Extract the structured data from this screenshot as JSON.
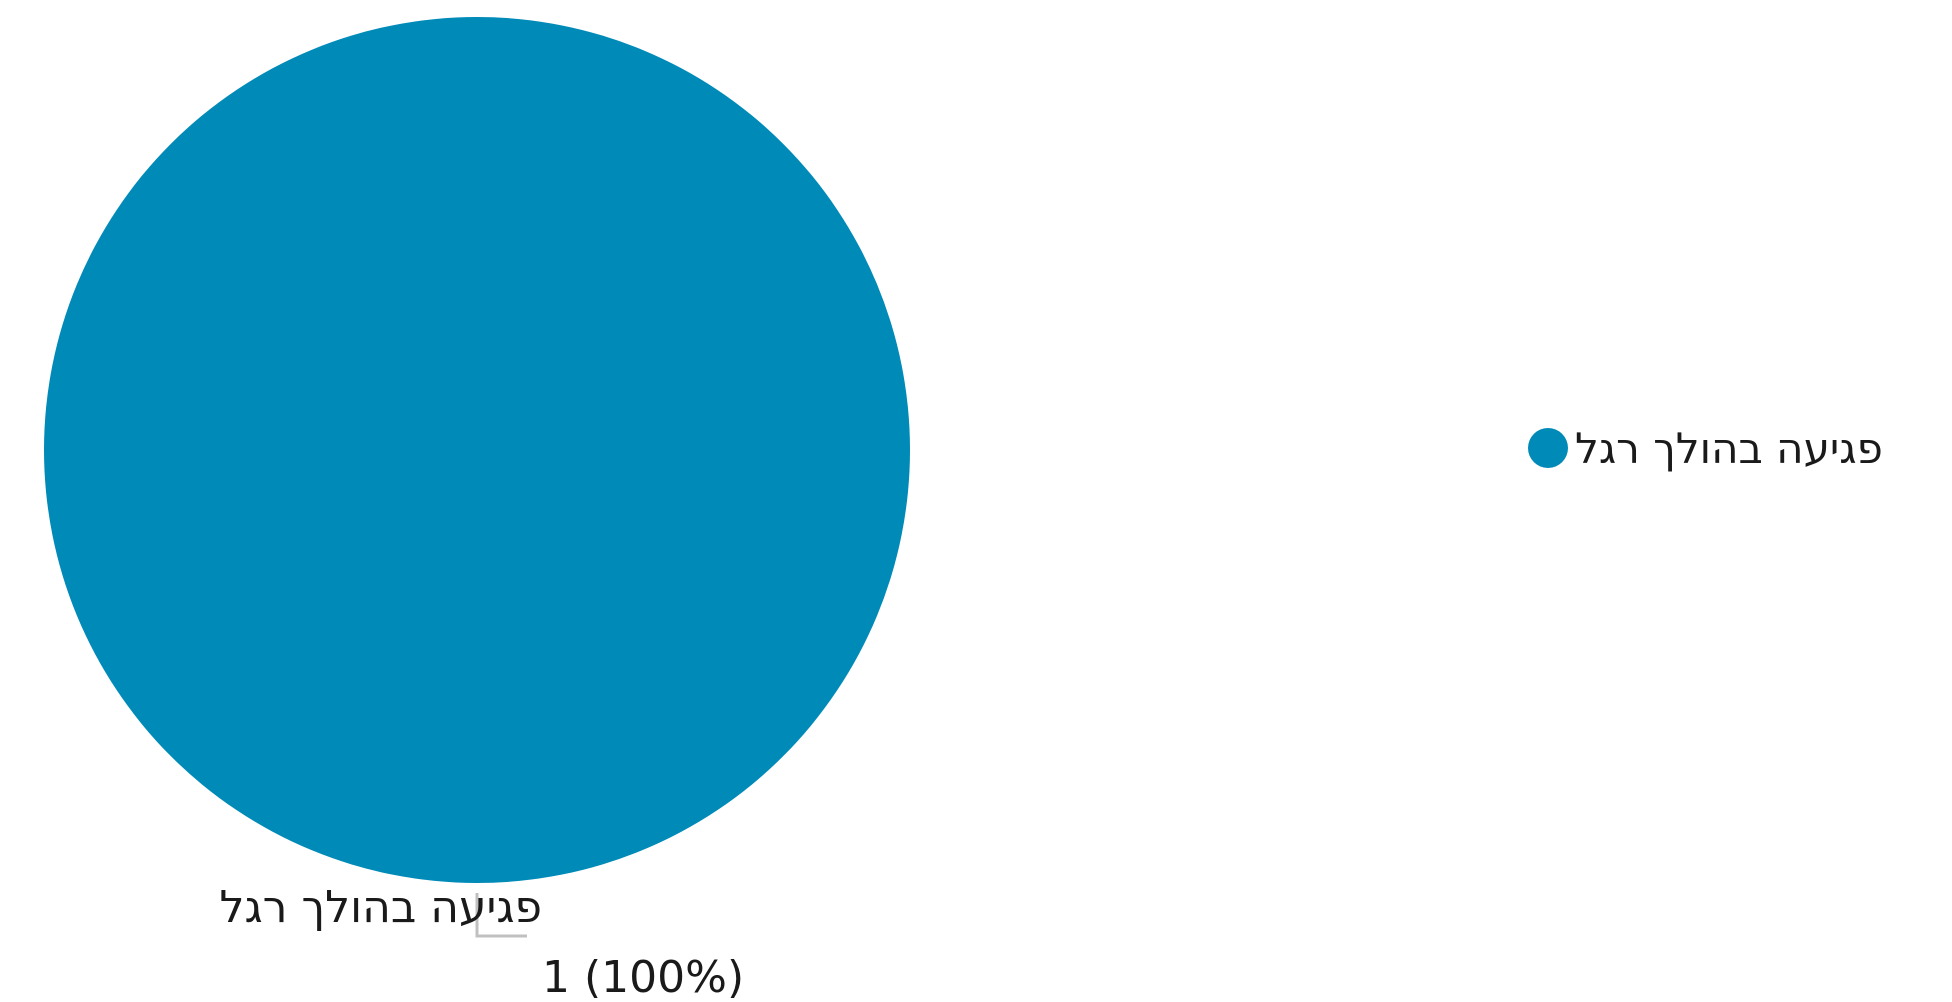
{
  "chart_data": {
    "type": "pie",
    "title": "",
    "slices": [
      {
        "label": "פגיעה בהולך רגל",
        "value": 1,
        "percent_label": "1 (100%)",
        "color": "#008ab8"
      }
    ],
    "legend": {
      "position": "right",
      "items": [
        {
          "label": "פגיעה בהולך רגל",
          "color": "#008ab8"
        }
      ]
    },
    "leader_line_color": "#c0c0c0"
  }
}
